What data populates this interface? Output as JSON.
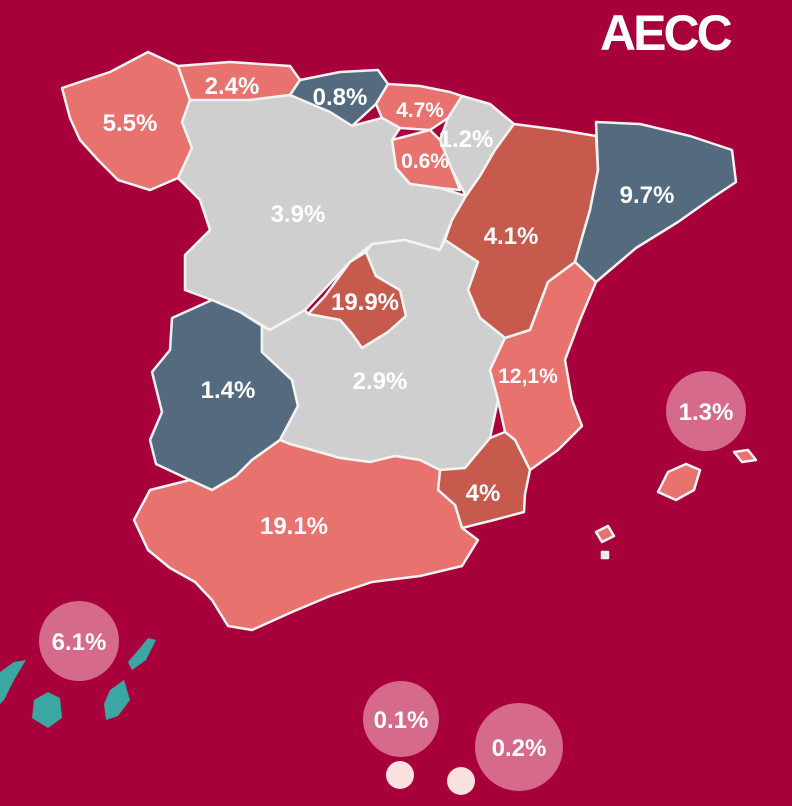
{
  "brand": {
    "logo_text": "AECC"
  },
  "colors": {
    "background": "#a8003b",
    "light_grey": "#cfcfcf",
    "salmon": "#e8726e",
    "brick": "#c65a4d",
    "slate": "#546a7e",
    "bubble": "#d56a8a",
    "canary_land": "#3aa7a3",
    "ceuta_melilla_dot": "#fbe0e0"
  },
  "regions": {
    "galicia": "5.5%",
    "asturias": "2.4%",
    "cantabria": "0.8%",
    "pais_vasco": "4.7%",
    "navarra": "1.2%",
    "la_rioja": "0.6%",
    "castilla_leon": "3.9%",
    "aragon": "4.1%",
    "cataluna": "9.7%",
    "madrid": "19.9%",
    "extremadura": "1.4%",
    "castilla_la_mancha": "2.9%",
    "valencia": "12,1%",
    "murcia": "4%",
    "andalucia": "19.1%",
    "baleares": "1.3%",
    "canarias": "6.1%",
    "ceuta": "0.1%",
    "melilla": "0.2%"
  }
}
